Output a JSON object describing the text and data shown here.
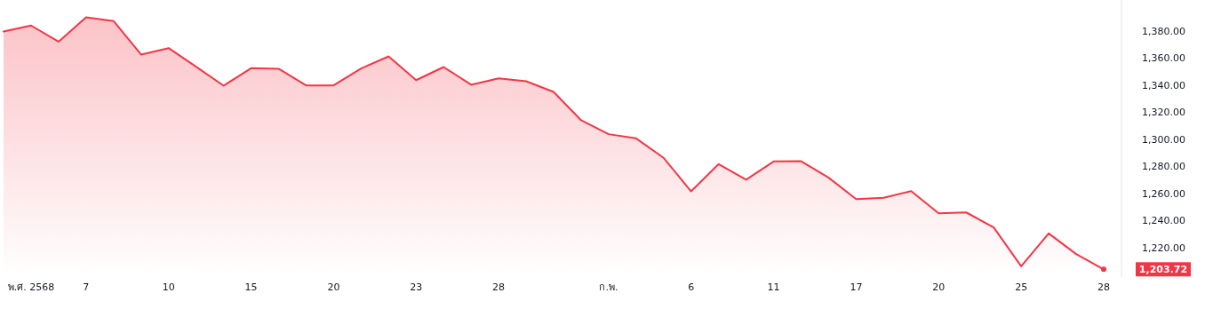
{
  "chart_data": {
    "type": "area",
    "color": "#f23645",
    "categories": [
      null,
      "พ.ศ. 2568",
      null,
      "7",
      null,
      null,
      "10",
      null,
      null,
      "15",
      null,
      null,
      "20",
      null,
      null,
      "23",
      null,
      null,
      "28",
      null,
      null,
      null,
      "ก.พ.",
      null,
      null,
      "6",
      null,
      null,
      "11",
      null,
      null,
      "17",
      null,
      null,
      "20",
      null,
      null,
      "25",
      null,
      null,
      "28"
    ],
    "values": [
      1379.7,
      1384.1,
      1372.2,
      1390.2,
      1387.4,
      1362.6,
      1367.4,
      1353.6,
      1339.6,
      1352.5,
      1352.1,
      1339.8,
      1339.8,
      1352.3,
      1361.3,
      1343.7,
      1353.4,
      1340.3,
      1345.0,
      1342.9,
      1335.0,
      1314.0,
      1303.7,
      1300.6,
      1286.2,
      1261.4,
      1281.6,
      1270.0,
      1283.5,
      1283.7,
      1271.5,
      1255.7,
      1256.6,
      1261.6,
      1245.2,
      1245.8,
      1234.7,
      1206.0,
      1230.3,
      1215.0,
      1203.72
    ],
    "annotations": [
      "1,203.72"
    ],
    "ylim": [
      1198,
      1403
    ],
    "yticks": [
      {
        "value": 1220,
        "label": "1,220.00"
      },
      {
        "value": 1240,
        "label": "1,240.00"
      },
      {
        "value": 1260,
        "label": "1,260.00"
      },
      {
        "value": 1280,
        "label": "1,280.00"
      },
      {
        "value": 1300,
        "label": "1,300.00"
      },
      {
        "value": 1320,
        "label": "1,320.00"
      },
      {
        "value": 1340,
        "label": "1,340.00"
      },
      {
        "value": 1360,
        "label": "1,360.00"
      },
      {
        "value": 1380,
        "label": "1,380.00"
      }
    ]
  }
}
